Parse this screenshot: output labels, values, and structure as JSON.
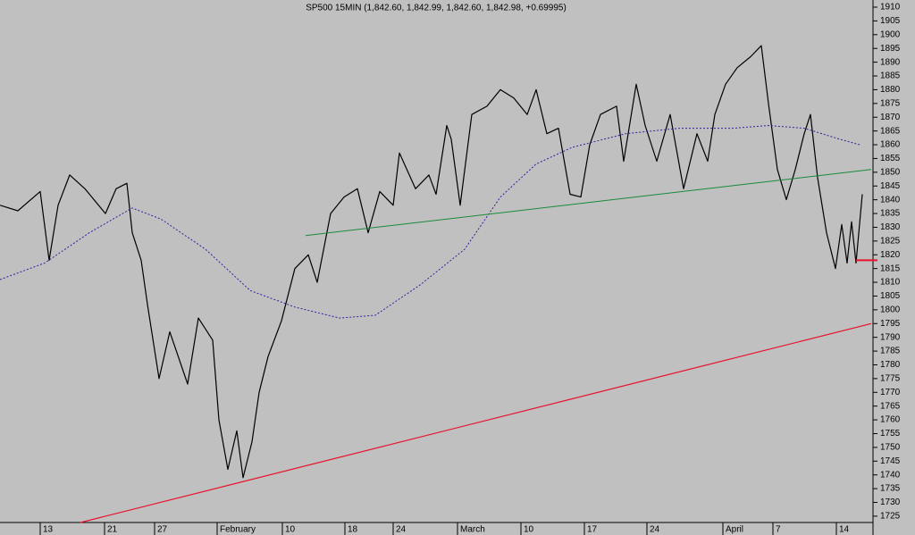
{
  "chart_data": {
    "type": "line",
    "title": "SP500 15MIN (1,842.60, 1,842.99, 1,842.60, 1,842.98, +0.69995)",
    "xlim": [
      0,
      97.5
    ],
    "ylim": [
      1722.7,
      1912.6
    ],
    "xticks": [
      {
        "value": 4.5,
        "label": "13"
      },
      {
        "value": 11.7,
        "label": "21"
      },
      {
        "value": 17.3,
        "label": "27"
      },
      {
        "value": 24.3,
        "label": "February"
      },
      {
        "value": 31.6,
        "label": "10"
      },
      {
        "value": 38.6,
        "label": "18"
      },
      {
        "value": 44,
        "label": "24"
      },
      {
        "value": 51.2,
        "label": "March"
      },
      {
        "value": 58.3,
        "label": "10"
      },
      {
        "value": 65.4,
        "label": "17"
      },
      {
        "value": 72.4,
        "label": "24"
      },
      {
        "value": 80.9,
        "label": "April"
      },
      {
        "value": 86.5,
        "label": "7"
      },
      {
        "value": 93.6,
        "label": "14"
      }
    ],
    "yticks": [
      1725,
      1730,
      1735,
      1740,
      1745,
      1750,
      1755,
      1760,
      1765,
      1770,
      1775,
      1780,
      1785,
      1790,
      1795,
      1800,
      1805,
      1810,
      1815,
      1820,
      1825,
      1830,
      1835,
      1840,
      1845,
      1850,
      1855,
      1860,
      1865,
      1870,
      1875,
      1880,
      1885,
      1890,
      1895,
      1900,
      1905,
      1910
    ],
    "grid": false,
    "series": [
      {
        "color": "#000000",
        "width": 1.2,
        "dash": false,
        "x": [
          0,
          2,
          4.5,
          5.5,
          6.5,
          7.8,
          9.5,
          11.8,
          13,
          14.2,
          14.8,
          15.8,
          16.5,
          17.8,
          19,
          21,
          22.2,
          23.8,
          24.5,
          25.5,
          26.5,
          27.2,
          28.2,
          29,
          30,
          31.5,
          33,
          34.5,
          35.5,
          37,
          38.5,
          40,
          41.2,
          42.5,
          44,
          44.7,
          46.5,
          48,
          48.8,
          50,
          50.5,
          51.5,
          52.8,
          54.5,
          56,
          57.5,
          59,
          60,
          61.2,
          62.5,
          63.8,
          65,
          66,
          67.2,
          69,
          69.8,
          71.2,
          72.2,
          73.5,
          75,
          76.5,
          78,
          79.2,
          80,
          81.2,
          82.5,
          84,
          85.2,
          86,
          87,
          88,
          89,
          90,
          90.7,
          91.5,
          92.5,
          93.5,
          94.2,
          94.8,
          95.3,
          95.8,
          96.5
        ],
        "values": [
          1838,
          1836,
          1843,
          1818,
          1838,
          1849,
          1844,
          1835,
          1844,
          1846,
          1828,
          1818,
          1802,
          1775,
          1792,
          1773,
          1797,
          1789,
          1760,
          1742,
          1756,
          1739,
          1752,
          1770,
          1783,
          1796,
          1815,
          1820,
          1810,
          1835,
          1841,
          1844,
          1828,
          1843,
          1838,
          1857,
          1844,
          1849,
          1842,
          1867,
          1862,
          1838,
          1871,
          1874,
          1880,
          1877,
          1871,
          1880,
          1864,
          1866,
          1842,
          1841,
          1860,
          1871,
          1874,
          1854,
          1882,
          1867,
          1854,
          1871,
          1844,
          1864,
          1854,
          1871,
          1882,
          1888,
          1892,
          1896,
          1875,
          1851,
          1840,
          1851,
          1864,
          1871,
          1848,
          1828,
          1815,
          1831,
          1817,
          1832,
          1817,
          1842
        ]
      },
      {
        "color": "#3a1aa0",
        "width": 1,
        "dash": true,
        "x": [
          0,
          5,
          10,
          14.8,
          18,
          23,
          28,
          33,
          38,
          42,
          47,
          52,
          56,
          60,
          64,
          70,
          76,
          82,
          86,
          90,
          94,
          96.2
        ],
        "values": [
          1811,
          1817,
          1828,
          1837,
          1833,
          1822,
          1807,
          1801,
          1797,
          1798,
          1809,
          1822,
          1841,
          1853,
          1859,
          1864,
          1866,
          1866,
          1867,
          1866,
          1862,
          1860
        ]
      },
      {
        "color": "#1a8a3a",
        "width": 1,
        "dash": false,
        "x": [
          34.2,
          97.5
        ],
        "values": [
          1827,
          1851
        ]
      },
      {
        "color": "#e8102a",
        "width": 1.2,
        "dash": false,
        "x": [
          9,
          97.5
        ],
        "values": [
          1722.7,
          1795
        ]
      },
      {
        "color": "#e8102a",
        "width": 2,
        "dash": false,
        "x": [
          95.8,
          98.2
        ],
        "values": [
          1818,
          1818
        ]
      }
    ]
  }
}
